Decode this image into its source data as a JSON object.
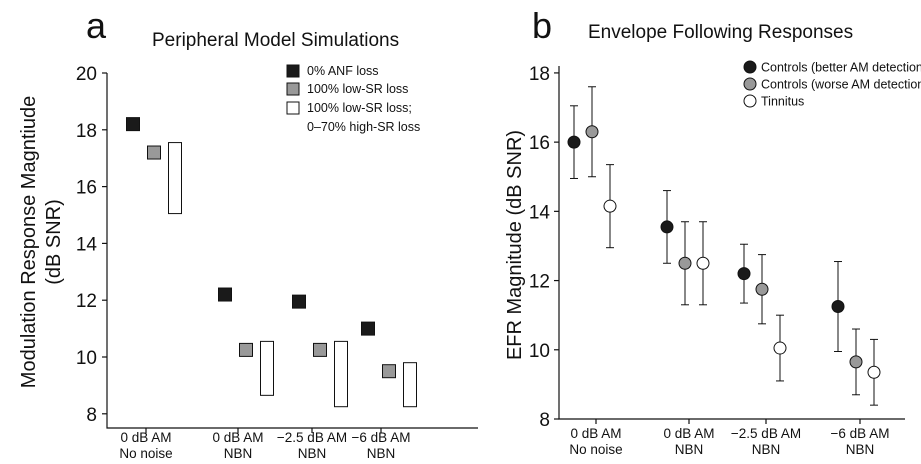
{
  "chart_data": [
    {
      "panel_letter": "a",
      "type": "bar",
      "title": "Peripheral Model Simulations",
      "ylabel_lines": [
        "Modulation Response Magntiude",
        "(dB SNR)"
      ],
      "ylim": [
        7.5,
        20
      ],
      "yticks": [
        8,
        10,
        12,
        14,
        16,
        18,
        20
      ],
      "categories": [
        [
          "0 dB AM",
          "No noise"
        ],
        [
          "0 dB AM",
          "NBN"
        ],
        [
          "−2.5 dB AM",
          "NBN"
        ],
        [
          "−6 dB AM",
          "NBN"
        ]
      ],
      "legend_position": "top-right",
      "series": [
        {
          "name": "0% ANF loss",
          "legend_lines": [
            "0% ANF loss"
          ],
          "color": "#1a1a1a",
          "marker": "square",
          "values": [
            18.2,
            12.2,
            11.95,
            11.0
          ]
        },
        {
          "name": "100% low-SR loss",
          "legend_lines": [
            "100% low-SR loss"
          ],
          "color": "#999999",
          "marker": "square",
          "values": [
            17.2,
            10.25,
            10.25,
            9.5
          ]
        },
        {
          "name": "100% low-SR loss; 0–70% high-SR loss",
          "legend_lines": [
            "100% low-SR loss;",
            "0–70% high-SR loss"
          ],
          "color": "#ffffff",
          "marker": "range",
          "ranges": [
            [
              15.05,
              17.55
            ],
            [
              8.65,
              10.55
            ],
            [
              8.25,
              10.55
            ],
            [
              8.25,
              9.8
            ]
          ]
        }
      ]
    },
    {
      "panel_letter": "b",
      "type": "scatter",
      "title": "Envelope Following Responses",
      "ylabel": "EFR Magnitude (dB SNR)",
      "ylim": [
        8,
        18.2
      ],
      "yticks": [
        8,
        10,
        12,
        14,
        16,
        18
      ],
      "categories": [
        [
          "0 dB AM",
          "No noise"
        ],
        [
          "0 dB AM",
          "NBN"
        ],
        [
          "−2.5 dB AM",
          "NBN"
        ],
        [
          "−6 dB AM",
          "NBN"
        ]
      ],
      "legend_position": "top-right",
      "series": [
        {
          "name": "Controls (better AM detection)",
          "color": "#1a1a1a",
          "values": [
            16.0,
            13.55,
            12.2,
            11.25
          ],
          "errors": [
            1.05,
            1.05,
            0.85,
            1.3
          ]
        },
        {
          "name": "Controls (worse AM detection)",
          "color": "#999999",
          "values": [
            16.3,
            12.5,
            11.75,
            9.65
          ],
          "errors": [
            1.3,
            1.2,
            1.0,
            0.95
          ]
        },
        {
          "name": "Tinnitus",
          "color": "#ffffff",
          "values": [
            14.15,
            12.5,
            10.05,
            9.35
          ],
          "errors": [
            1.2,
            1.2,
            0.95,
            0.95
          ]
        }
      ]
    }
  ]
}
